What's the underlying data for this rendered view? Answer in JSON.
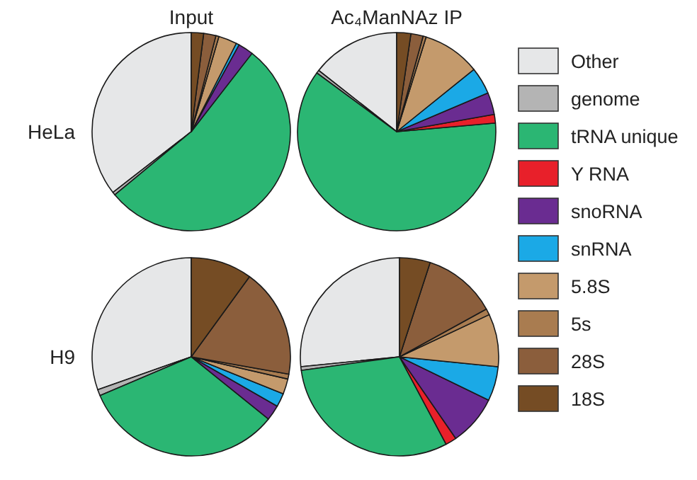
{
  "chart_data": [
    {
      "type": "pie",
      "title": "Input",
      "ylabel": "HeLa",
      "legend": "right",
      "categories": [
        "Other",
        "genome",
        "tRNA unique",
        "Y RNA",
        "snoRNA",
        "snRNA",
        "5.8S",
        "5s",
        "28S",
        "18S"
      ],
      "values": [
        35.5,
        0.5,
        53.5,
        0,
        2.5,
        0.5,
        3,
        0.5,
        2,
        2
      ],
      "colors": [
        "#e6e7e8",
        "#b4b4b4",
        "#2bb673",
        "#e8202a",
        "#6a2c91",
        "#1ba9e6",
        "#c49a6c",
        "#a97c50",
        "#8b5e3c",
        "#754c24"
      ]
    },
    {
      "type": "pie",
      "title": "Ac₄ManNAz IP",
      "categories": [
        null,
        null,
        null,
        null,
        null,
        null,
        null,
        null,
        null,
        null
      ],
      "values": [
        14.4,
        0.5,
        61.5,
        1.4,
        3.6,
        4.4,
        9.4,
        0.5,
        2,
        2.3
      ],
      "colors": [
        "#e6e7e8",
        "#b4b4b4",
        "#2bb673",
        "#e8202a",
        "#6a2c91",
        "#1ba9e6",
        "#c49a6c",
        "#a97c50",
        "#8b5e3c",
        "#754c24"
      ]
    },
    {
      "type": "pie",
      "ylabel": "H9",
      "categories": [
        null,
        null,
        null,
        null,
        null,
        null,
        null,
        null,
        null,
        null
      ],
      "values": [
        30.4,
        1,
        32.8,
        0,
        2.5,
        2.2,
        2.5,
        0.8,
        17.8,
        10
      ],
      "colors": [
        "#e6e7e8",
        "#b4b4b4",
        "#2bb673",
        "#e8202a",
        "#6a2c91",
        "#1ba9e6",
        "#c49a6c",
        "#a97c50",
        "#8b5e3c",
        "#754c24"
      ]
    },
    {
      "type": "pie",
      "categories": [
        null,
        null,
        null,
        null,
        null,
        null,
        null,
        null,
        null,
        null
      ],
      "values": [
        26.6,
        0.6,
        30.6,
        1.8,
        8.2,
        5.6,
        8.6,
        1,
        12,
        5
      ],
      "colors": [
        "#e6e7e8",
        "#b4b4b4",
        "#2bb673",
        "#e8202a",
        "#6a2c91",
        "#1ba9e6",
        "#c49a6c",
        "#a97c50",
        "#8b5e3c",
        "#754c24"
      ]
    }
  ]
}
